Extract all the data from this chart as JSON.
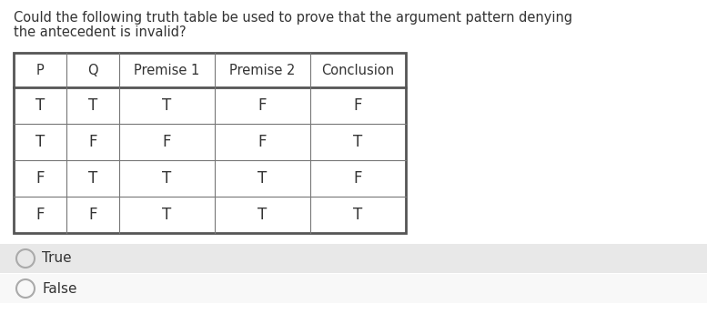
{
  "title_line1": "Could the following truth table be used to prove that the argument pattern denying",
  "title_line2": "the antecedent is invalid?",
  "headers": [
    "P",
    "Q",
    "Premise 1",
    "Premise 2",
    "Conclusion"
  ],
  "rows": [
    [
      "T",
      "T",
      "T",
      "F",
      "F"
    ],
    [
      "T",
      "F",
      "F",
      "F",
      "T"
    ],
    [
      "F",
      "T",
      "T",
      "T",
      "F"
    ],
    [
      "F",
      "F",
      "T",
      "T",
      "T"
    ]
  ],
  "options": [
    "True",
    "False"
  ],
  "title_fontsize": 10.5,
  "header_fontsize": 10.5,
  "cell_fontsize": 12,
  "option_fontsize": 11,
  "border_color": "#555555",
  "inner_border_color": "#777777",
  "text_color": "#333333",
  "true_bg": "#e8e8e8",
  "false_bg": "#f0f0f0",
  "circle_color": "#aaaaaa"
}
